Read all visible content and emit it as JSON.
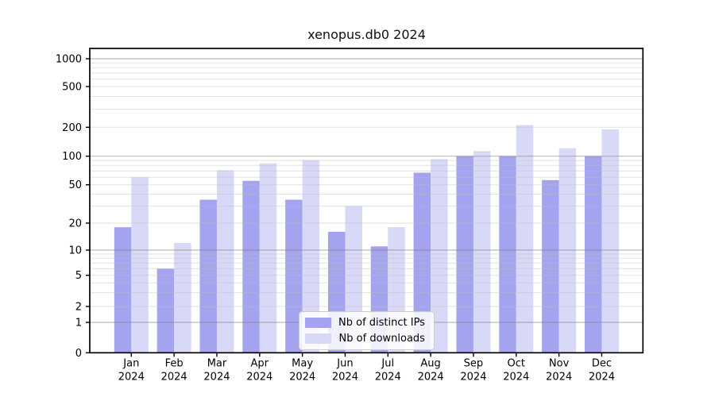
{
  "chart_data": {
    "type": "bar",
    "title": "xenopus.db0 2024",
    "categories": [
      "Jan",
      "Feb",
      "Mar",
      "Apr",
      "May",
      "Jun",
      "Jul",
      "Aug",
      "Sep",
      "Oct",
      "Nov",
      "Dec"
    ],
    "year": "2024",
    "series": [
      {
        "name": "Nb of distinct IPs",
        "color": "#a3a3ef",
        "values": [
          18,
          6,
          35,
          55,
          35,
          16,
          11,
          67,
          100,
          100,
          56,
          100
        ]
      },
      {
        "name": "Nb of downloads",
        "color": "#d8d8f7",
        "values": [
          60,
          12,
          71,
          84,
          91,
          30,
          18,
          93,
          113,
          210,
          121,
          190
        ]
      }
    ],
    "xlabel": "",
    "ylabel": "",
    "yscale": "symlog",
    "ylim": [
      0,
      1200
    ],
    "yticks": [
      0,
      1,
      2,
      5,
      10,
      20,
      50,
      100,
      200,
      500,
      1000
    ],
    "grid": true,
    "legend_position": "lower-center"
  }
}
